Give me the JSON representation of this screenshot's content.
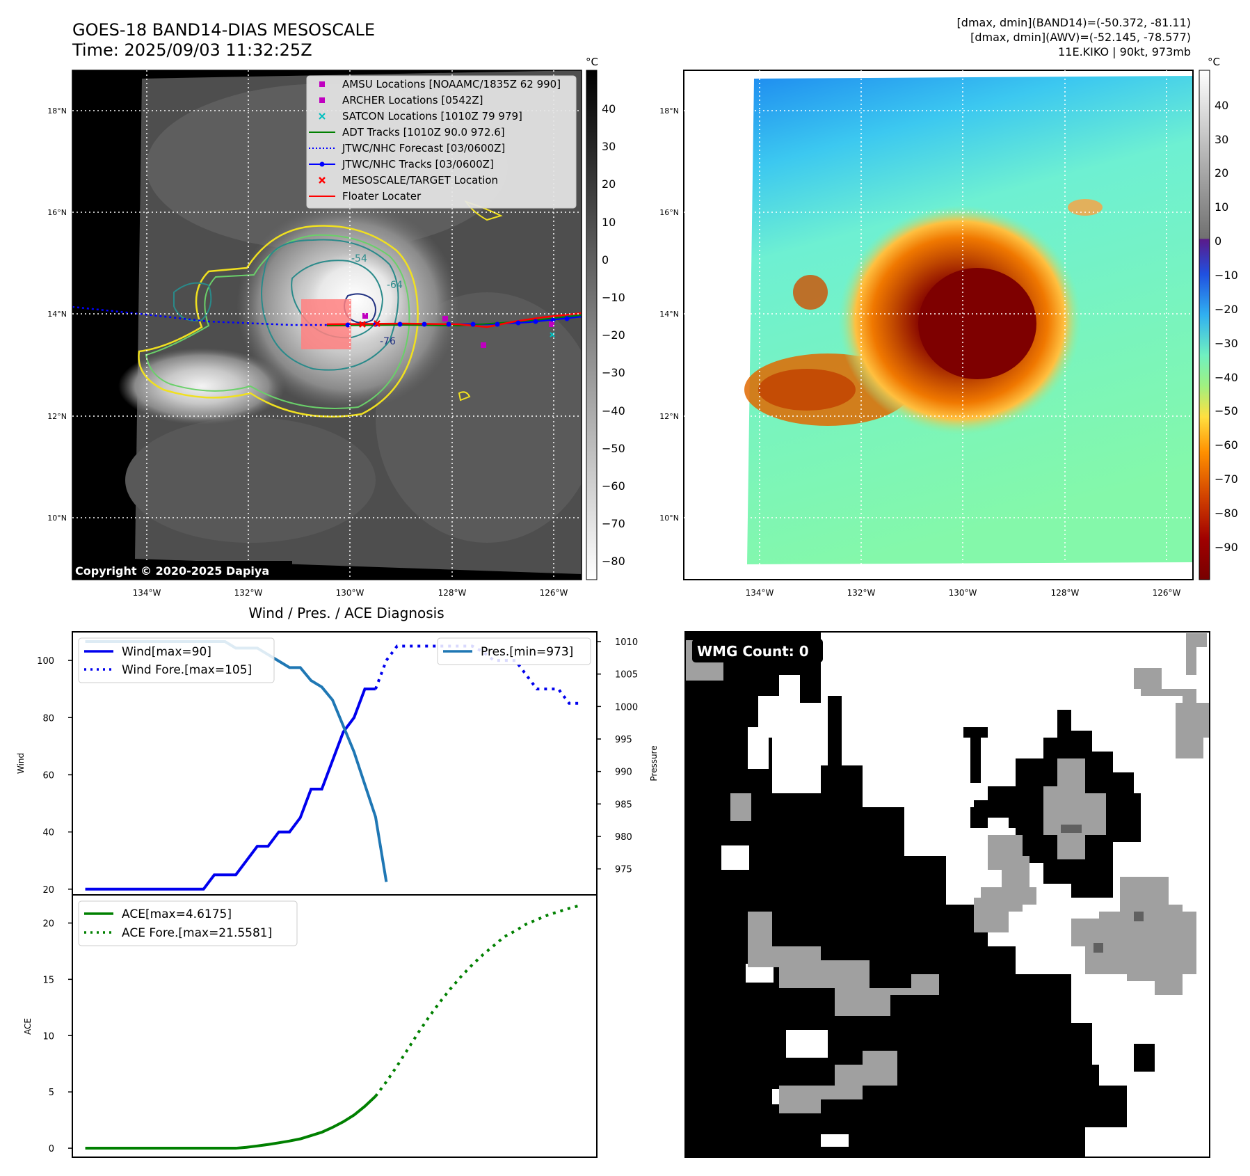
{
  "header": {
    "title_line1": "GOES-18 BAND14-DIAS MESOSCALE",
    "title_line2": "Time: 2025/09/03 11:32:25Z",
    "right_line1": "[dmax, dmin](BAND14)=(-50.372, -81.11)",
    "right_line2": "[dmax, dmin](AWV)=(-52.145, -78.577)",
    "right_line3": "11E.KIKO | 90kt, 973mb"
  },
  "map": {
    "lat_ticks": [
      "18°N",
      "16°N",
      "14°N",
      "12°N",
      "10°N"
    ],
    "lon_ticks": [
      "134°W",
      "132°W",
      "130°W",
      "128°W",
      "126°W"
    ],
    "copyright": "Copyright © 2020-2025 Dapiya",
    "contour_labels": [
      "-54",
      "-64",
      "-76"
    ],
    "colorbar_unit": "°C",
    "gray_colorbar_ticks": [
      "40",
      "30",
      "20",
      "10",
      "0",
      "−10",
      "−20",
      "−30",
      "−40",
      "−50",
      "−60",
      "−70",
      "−80"
    ],
    "color_colorbar_ticks": [
      "40",
      "30",
      "20",
      "10",
      "0",
      "−10",
      "−20",
      "−30",
      "−40",
      "−50",
      "−60",
      "−70",
      "−80",
      "−90"
    ],
    "legend": [
      {
        "label": "AMSU Locations [NOAAMC/1835Z 62 990]",
        "color": "#c000c0",
        "marker": "square"
      },
      {
        "label": "ARCHER Locations [0542Z]",
        "color": "#c000c0",
        "marker": "square"
      },
      {
        "label": "SATCON Locations [1010Z 79 979]",
        "color": "#00bfbf",
        "marker": "x"
      },
      {
        "label": "ADT Tracks [1010Z 90.0 972.6]",
        "color": "#008000",
        "marker": "line"
      },
      {
        "label": "JTWC/NHC Forecast [03/0600Z]",
        "color": "#0000ff",
        "marker": "dotted"
      },
      {
        "label": "JTWC/NHC Tracks [03/0600Z]",
        "color": "#0000ff",
        "marker": "line-dot"
      },
      {
        "label": "MESOSCALE/TARGET Location",
        "color": "#ff0000",
        "marker": "x"
      },
      {
        "label": "Floater Locater",
        "color": "#ff0000",
        "marker": "line"
      }
    ]
  },
  "diagnosis": {
    "title": "Wind / Pres. / ACE Diagnosis",
    "wind_axis_label": "Wind",
    "pres_axis_label": "Pressure",
    "ace_axis_label": "ACE",
    "legend_wind": "Wind[max=90]",
    "legend_wind_fore": "Wind Fore.[max=105]",
    "legend_pres": "Pres.[min=973]",
    "legend_ace": "ACE[max=4.6175]",
    "legend_ace_fore": "ACE Fore.[max=21.5581]"
  },
  "wmg": {
    "label": "WMG Count: 0"
  },
  "chart_data": [
    {
      "type": "line",
      "title": "Wind / Pres. / ACE Diagnosis",
      "ylabel": "Wind",
      "y2label": "Pressure",
      "ylim": [
        18,
        110
      ],
      "y2lim": [
        971,
        1011.5
      ],
      "y_ticks": [
        20,
        40,
        60,
        80,
        100
      ],
      "y2_ticks": [
        975,
        980,
        985,
        990,
        995,
        1000,
        1005,
        1010
      ],
      "series": [
        {
          "name": "Wind[max=90]",
          "color": "#0000ee",
          "style": "solid",
          "x": [
            0,
            1,
            2,
            3,
            4,
            5,
            6,
            7,
            8,
            9,
            10,
            11,
            12,
            13,
            14,
            15,
            16,
            17,
            18,
            19,
            20,
            21,
            22,
            23,
            24,
            25,
            26,
            27
          ],
          "values": [
            20,
            20,
            20,
            20,
            20,
            20,
            20,
            20,
            20,
            20,
            20,
            20,
            25,
            25,
            25,
            30,
            35,
            35,
            40,
            40,
            45,
            55,
            55,
            65,
            75,
            80,
            90,
            90
          ]
        },
        {
          "name": "Wind Fore.[max=105]",
          "color": "#0000ee",
          "style": "dotted",
          "x": [
            27,
            28,
            29,
            30,
            31,
            32,
            33,
            34,
            35,
            36,
            37,
            38,
            39,
            40,
            41,
            42,
            43,
            44,
            45,
            46
          ],
          "values": [
            90,
            100,
            105,
            105,
            105,
            105,
            105,
            105,
            105,
            105,
            103,
            100,
            100,
            100,
            95,
            90,
            90,
            90,
            85,
            85
          ]
        },
        {
          "name": "Pres.[min=973]",
          "color": "#1f77b4",
          "style": "solid",
          "axis": "y2",
          "x": [
            0,
            1,
            2,
            3,
            4,
            5,
            6,
            7,
            8,
            9,
            10,
            11,
            12,
            13,
            14,
            15,
            16,
            17,
            18,
            19,
            20,
            21,
            22,
            23,
            24,
            25,
            26,
            27,
            28
          ],
          "values": [
            1010,
            1010,
            1010,
            1010,
            1010,
            1010,
            1010,
            1010,
            1010,
            1010,
            1010,
            1010,
            1010,
            1010,
            1009,
            1009,
            1009,
            1008,
            1007,
            1006,
            1006,
            1004,
            1003,
            1001,
            997,
            993,
            988,
            983,
            973
          ]
        }
      ]
    },
    {
      "type": "line",
      "ylabel": "ACE",
      "ylim": [
        -0.8,
        22.5
      ],
      "y_ticks": [
        0,
        5,
        10,
        15,
        20
      ],
      "series": [
        {
          "name": "ACE[max=4.6175]",
          "color": "#008000",
          "style": "solid",
          "x": [
            0,
            1,
            2,
            3,
            4,
            5,
            6,
            7,
            8,
            9,
            10,
            11,
            12,
            13,
            14,
            15,
            16,
            17,
            18,
            19,
            20,
            21,
            22,
            23,
            24,
            25,
            26,
            27
          ],
          "values": [
            0,
            0,
            0,
            0,
            0,
            0,
            0,
            0,
            0,
            0,
            0,
            0,
            0,
            0,
            0,
            0.08,
            0.2,
            0.33,
            0.48,
            0.64,
            0.83,
            1.12,
            1.42,
            1.85,
            2.35,
            2.95,
            3.72,
            4.6175
          ]
        },
        {
          "name": "ACE Fore.[max=21.5581]",
          "color": "#008000",
          "style": "dotted",
          "x": [
            27,
            28,
            29,
            30,
            31,
            32,
            33,
            34,
            35,
            36,
            37,
            38,
            39,
            40,
            41,
            42,
            43,
            44,
            45,
            46
          ],
          "values": [
            4.6175,
            5.9,
            7.3,
            8.8,
            10.3,
            11.7,
            13.0,
            14.2,
            15.3,
            16.3,
            17.2,
            18.0,
            18.8,
            19.3,
            19.9,
            20.3,
            20.7,
            21.0,
            21.3,
            21.5581
          ]
        }
      ]
    }
  ]
}
